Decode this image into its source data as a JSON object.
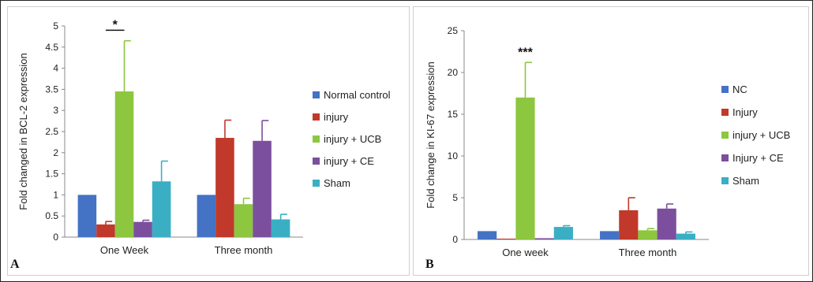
{
  "panels": [
    {
      "letter": "A"
    },
    {
      "letter": "B"
    }
  ],
  "chart_data": [
    {
      "type": "bar",
      "title": "",
      "xlabel": "",
      "ylabel": "Fold changed in BCL-2 expression",
      "categories": [
        "One Week",
        "Three month"
      ],
      "ylim": [
        0,
        5
      ],
      "yticks": [
        "0",
        "0.5",
        "1",
        "1.5",
        "2",
        "2.5",
        "3",
        "3.5",
        "4",
        "4.5",
        "5"
      ],
      "ytick_values": [
        0,
        0.5,
        1,
        1.5,
        2,
        2.5,
        3,
        3.5,
        4,
        4.5,
        5
      ],
      "grid": false,
      "legend_position": "right",
      "significance": [
        {
          "label": "*",
          "category": "One Week",
          "from_series": 1,
          "to_series": 2
        }
      ],
      "series": [
        {
          "name": "Normal control",
          "color": "#4472C4",
          "values": [
            1.0,
            1.0
          ],
          "errors": [
            0,
            0
          ]
        },
        {
          "name": "injury",
          "color": "#C0392B",
          "values": [
            0.3,
            2.35
          ],
          "errors": [
            0.07,
            0.42
          ]
        },
        {
          "name": "injury + UCB",
          "color": "#8DC63F",
          "values": [
            3.45,
            0.78
          ],
          "errors": [
            1.2,
            0.14
          ]
        },
        {
          "name": "injury + CE",
          "color": "#7B4F9E",
          "values": [
            0.36,
            2.28
          ],
          "errors": [
            0.04,
            0.48
          ]
        },
        {
          "name": "Sham",
          "color": "#3AAFC4",
          "values": [
            1.32,
            0.42
          ],
          "errors": [
            0.48,
            0.12
          ]
        }
      ]
    },
    {
      "type": "bar",
      "title": "",
      "xlabel": "",
      "ylabel": "Fold change in KI-67 expression",
      "categories": [
        "One week",
        "Three month"
      ],
      "ylim": [
        0,
        25
      ],
      "yticks": [
        "0",
        "5",
        "10",
        "15",
        "20",
        "25"
      ],
      "ytick_values": [
        0,
        5,
        10,
        15,
        20,
        25
      ],
      "grid": false,
      "legend_position": "right",
      "significance": [
        {
          "label": "***",
          "category": "One week",
          "series": 2
        }
      ],
      "series": [
        {
          "name": "NC",
          "color": "#4472C4",
          "values": [
            1.0,
            1.0
          ],
          "errors": [
            0,
            0
          ]
        },
        {
          "name": "Injury",
          "color": "#C0392B",
          "values": [
            0.1,
            3.5
          ],
          "errors": [
            0,
            1.5
          ]
        },
        {
          "name": "injury + UCB",
          "color": "#8DC63F",
          "values": [
            17.0,
            1.1
          ],
          "errors": [
            4.2,
            0.2
          ]
        },
        {
          "name": "Injury + CE",
          "color": "#7B4F9E",
          "values": [
            0.15,
            3.7
          ],
          "errors": [
            0,
            0.55
          ]
        },
        {
          "name": "Sham",
          "color": "#3AAFC4",
          "values": [
            1.5,
            0.7
          ],
          "errors": [
            0.15,
            0.2
          ]
        }
      ]
    }
  ]
}
